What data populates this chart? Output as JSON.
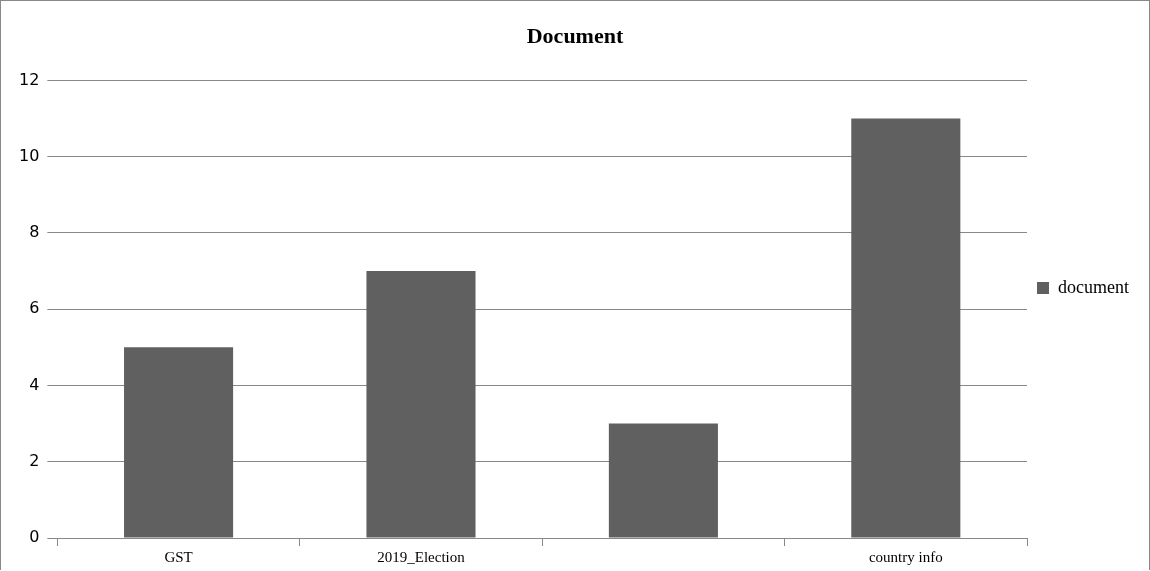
{
  "chart_data": {
    "type": "bar",
    "title": "Document",
    "categories": [
      "GST",
      "2019_Election",
      null,
      "country info"
    ],
    "series": [
      {
        "name": "document",
        "color": "#606060",
        "values": [
          5,
          7,
          3,
          11
        ]
      }
    ],
    "ylim": [
      0,
      12
    ],
    "yticks": [
      0,
      2,
      4,
      6,
      8,
      10,
      12
    ],
    "grid": "y",
    "legend": "right"
  }
}
